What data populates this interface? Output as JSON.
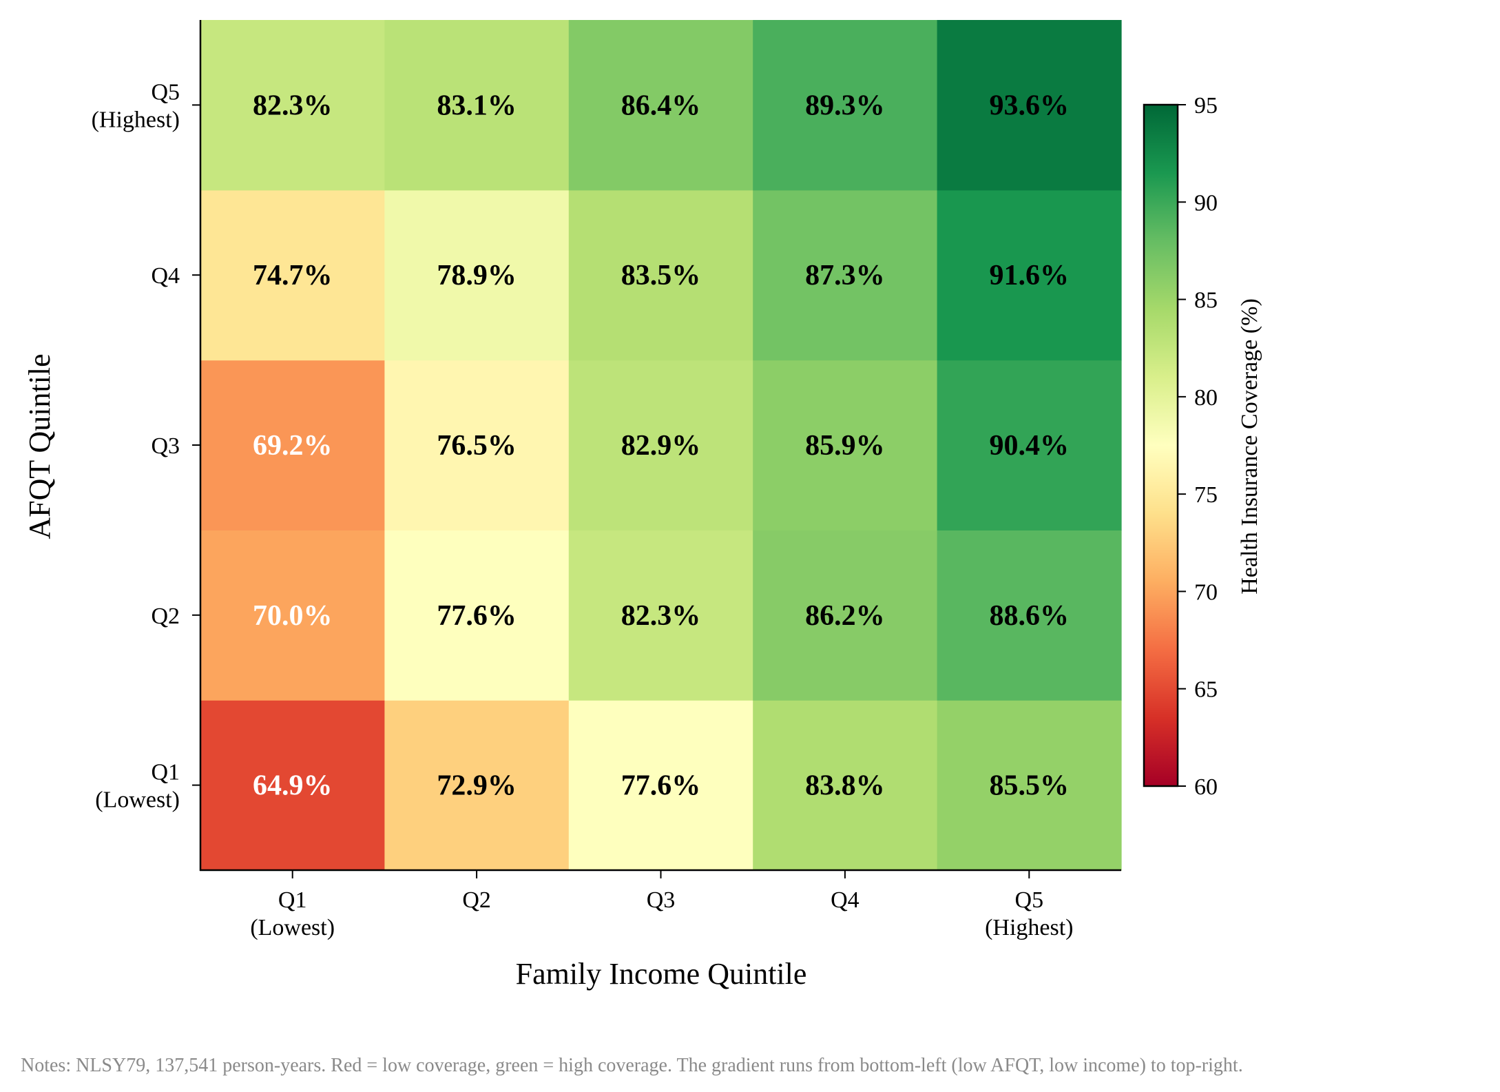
{
  "chart_data": {
    "type": "heatmap",
    "title": "",
    "xlabel": "Family Income Quintile",
    "ylabel": "AFQT Quintile",
    "x_categories": [
      [
        "Q1",
        "(Lowest)"
      ],
      [
        "Q2"
      ],
      [
        "Q3"
      ],
      [
        "Q4"
      ],
      [
        "Q5",
        "(Highest)"
      ]
    ],
    "y_categories": [
      [
        "Q1",
        "(Lowest)"
      ],
      [
        "Q2"
      ],
      [
        "Q3"
      ],
      [
        "Q4"
      ],
      [
        "Q5",
        "(Highest)"
      ]
    ],
    "values": [
      [
        64.9,
        72.9,
        77.6,
        83.8,
        85.5
      ],
      [
        70.0,
        77.6,
        82.3,
        86.2,
        88.6
      ],
      [
        69.2,
        76.5,
        82.9,
        85.9,
        90.4
      ],
      [
        74.7,
        78.9,
        83.5,
        87.3,
        91.6
      ],
      [
        82.3,
        83.1,
        86.4,
        89.3,
        93.6
      ]
    ],
    "value_suffix": "%",
    "colorbar": {
      "label": "Health Insurance Coverage (%)",
      "min": 60,
      "max": 95,
      "ticks": [
        60,
        65,
        70,
        75,
        80,
        85,
        90,
        95
      ],
      "colormap": "RdYlGn"
    }
  },
  "notes": "Notes: NLSY79, 137,541 person-years. Red = low coverage, green = high coverage. The gradient runs from bottom-left (low AFQT, low income) to top-right."
}
